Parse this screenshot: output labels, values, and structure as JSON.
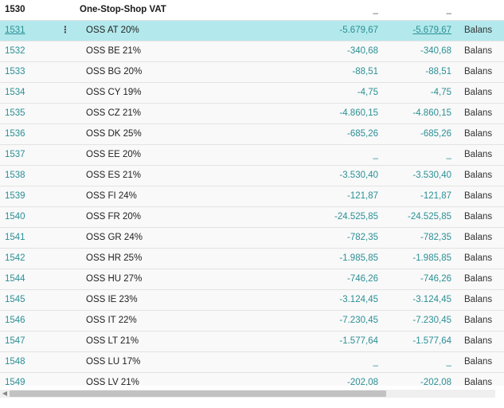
{
  "header": {
    "no": "1530",
    "name": "One-Stop-Shop VAT",
    "a": "_",
    "b": "_",
    "type": ""
  },
  "rows": [
    {
      "no": "1531",
      "name": "OSS AT 20%",
      "a": "-5.679,67",
      "b": "-5.679,67",
      "type": "Balans",
      "selected": true
    },
    {
      "no": "1532",
      "name": "OSS BE 21%",
      "a": "-340,68",
      "b": "-340,68",
      "type": "Balans"
    },
    {
      "no": "1533",
      "name": "OSS BG 20%",
      "a": "-88,51",
      "b": "-88,51",
      "type": "Balans"
    },
    {
      "no": "1534",
      "name": "OSS CY 19%",
      "a": "-4,75",
      "b": "-4,75",
      "type": "Balans"
    },
    {
      "no": "1535",
      "name": "OSS CZ 21%",
      "a": "-4.860,15",
      "b": "-4.860,15",
      "type": "Balans"
    },
    {
      "no": "1536",
      "name": "OSS DK 25%",
      "a": "-685,26",
      "b": "-685,26",
      "type": "Balans"
    },
    {
      "no": "1537",
      "name": "OSS EE 20%",
      "a": "_",
      "b": "_",
      "type": "Balans"
    },
    {
      "no": "1538",
      "name": "OSS ES 21%",
      "a": "-3.530,40",
      "b": "-3.530,40",
      "type": "Balans"
    },
    {
      "no": "1539",
      "name": "OSS FI 24%",
      "a": "-121,87",
      "b": "-121,87",
      "type": "Balans"
    },
    {
      "no": "1540",
      "name": "OSS FR 20%",
      "a": "-24.525,85",
      "b": "-24.525,85",
      "type": "Balans"
    },
    {
      "no": "1541",
      "name": "OSS GR 24%",
      "a": "-782,35",
      "b": "-782,35",
      "type": "Balans"
    },
    {
      "no": "1542",
      "name": "OSS HR 25%",
      "a": "-1.985,85",
      "b": "-1.985,85",
      "type": "Balans"
    },
    {
      "no": "1544",
      "name": "OSS HU 27%",
      "a": "-746,26",
      "b": "-746,26",
      "type": "Balans"
    },
    {
      "no": "1545",
      "name": "OSS IE 23%",
      "a": "-3.124,45",
      "b": "-3.124,45",
      "type": "Balans"
    },
    {
      "no": "1546",
      "name": "OSS IT 22%",
      "a": "-7.230,45",
      "b": "-7.230,45",
      "type": "Balans"
    },
    {
      "no": "1547",
      "name": "OSS LT 21%",
      "a": "-1.577,64",
      "b": "-1.577,64",
      "type": "Balans"
    },
    {
      "no": "1548",
      "name": "OSS LU 17%",
      "a": "_",
      "b": "_",
      "type": "Balans"
    },
    {
      "no": "1549",
      "name": "OSS LV 21%",
      "a": "-202,08",
      "b": "-202,08",
      "type": "Balans"
    }
  ],
  "row_menu_icon": "more-vertical-icon",
  "row_menu_glyph": "⋮",
  "scrollbar_left_glyph": "◀",
  "colors": {
    "link": "#2b8f95",
    "selected": "#b3e9ec"
  }
}
